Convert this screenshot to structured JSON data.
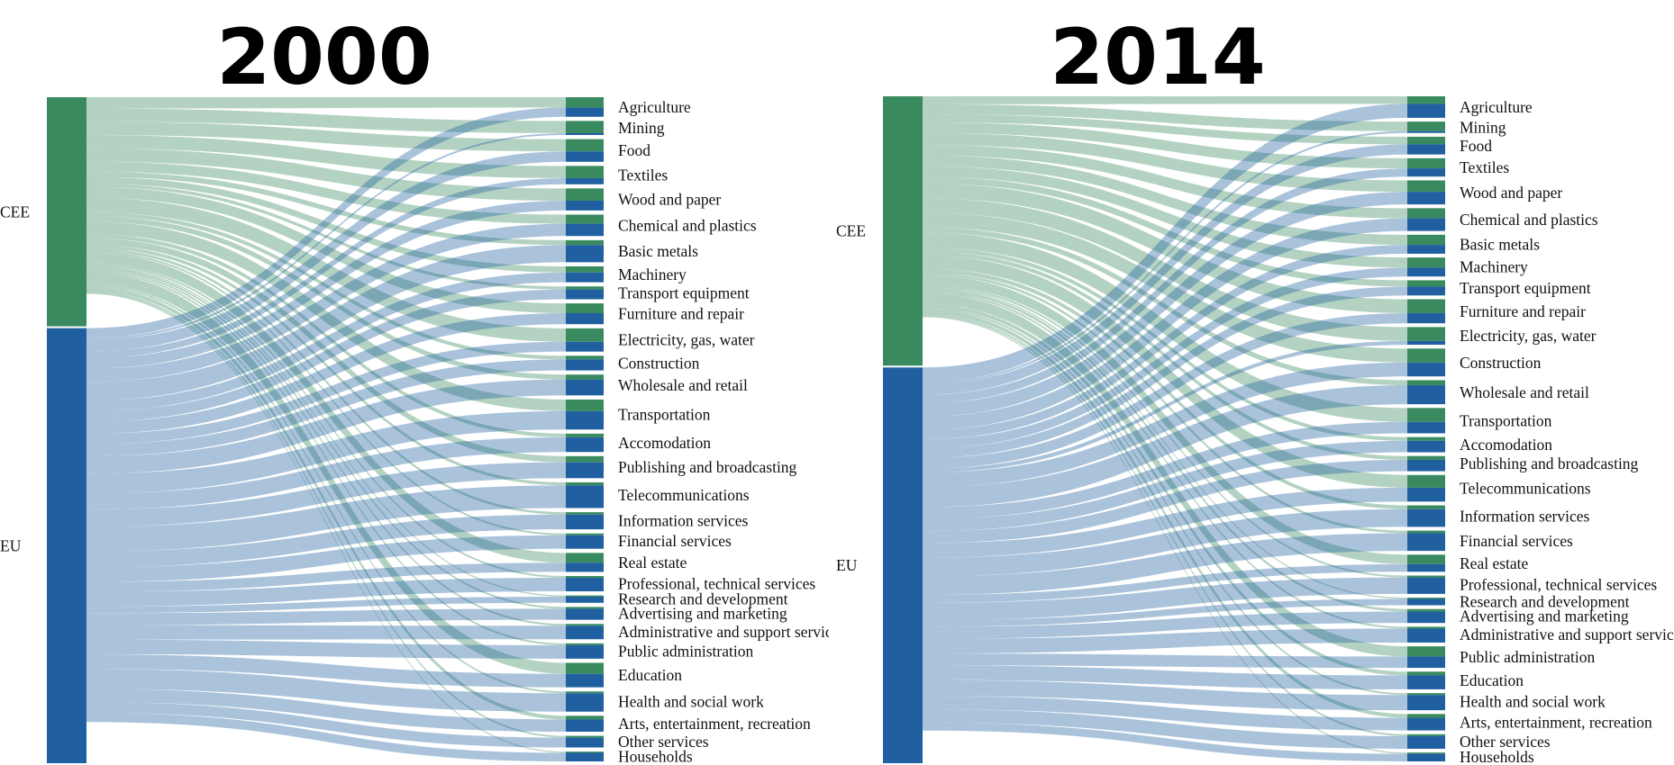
{
  "colors": {
    "CEE": "#3a8a5f",
    "EU": "#2060a0",
    "CEE_link": "#3a8a5f",
    "EU_link": "#2060a0"
  },
  "chart_data": [
    {
      "type": "sankey",
      "title": "2000",
      "sources": [
        "CEE",
        "EU"
      ],
      "source_totals": [
        34.5,
        65.5
      ],
      "units": "approximate share of node height (%)",
      "targets": [
        {
          "label": "Agriculture",
          "CEE": 1.7,
          "EU": 1.5
        },
        {
          "label": "Mining",
          "CEE": 2.0,
          "EU": 0.3
        },
        {
          "label": "Food",
          "CEE": 2.0,
          "EU": 1.7
        },
        {
          "label": "Textiles",
          "CEE": 2.0,
          "EU": 1.0
        },
        {
          "label": "Wood and paper",
          "CEE": 2.0,
          "EU": 1.6
        },
        {
          "label": "Chemical and plastics",
          "CEE": 1.5,
          "EU": 2.0
        },
        {
          "label": "Basic metals",
          "CEE": 0.8,
          "EU": 2.8
        },
        {
          "label": "Machinery",
          "CEE": 1.0,
          "EU": 1.6
        },
        {
          "label": "Transport equipment",
          "CEE": 0.5,
          "EU": 1.6
        },
        {
          "label": "Furniture and repair",
          "CEE": 1.6,
          "EU": 1.8
        },
        {
          "label": "Electricity, gas, water",
          "CEE": 2.2,
          "EU": 1.6
        },
        {
          "label": "Construction",
          "CEE": 0.6,
          "EU": 1.8
        },
        {
          "label": "Wholesale and retail",
          "CEE": 0.8,
          "EU": 2.6
        },
        {
          "label": "Transportation",
          "CEE": 1.9,
          "EU": 3.0
        },
        {
          "label": "Accomodation",
          "CEE": 0.6,
          "EU": 2.4
        },
        {
          "label": "Publishing and broadcasting",
          "CEE": 1.0,
          "EU": 2.6
        },
        {
          "label": "Telecommunications",
          "CEE": 0.5,
          "EU": 3.7
        },
        {
          "label": "Information services",
          "CEE": 0.4,
          "EU": 2.4
        },
        {
          "label": "Financial services",
          "CEE": 0.3,
          "EU": 2.2
        },
        {
          "label": "Real estate",
          "CEE": 1.6,
          "EU": 1.5
        },
        {
          "label": "Professional, technical services",
          "CEE": 0.3,
          "EU": 2.2
        },
        {
          "label": "Research and development",
          "CEE": 0.2,
          "EU": 1.0
        },
        {
          "label": "Advertising and marketing",
          "CEE": 0.3,
          "EU": 1.8
        },
        {
          "label": "Administrative and support services",
          "CEE": 0.3,
          "EU": 2.2
        },
        {
          "label": "Public administration",
          "CEE": 0.3,
          "EU": 2.2
        },
        {
          "label": "Education",
          "CEE": 1.8,
          "EU": 2.2
        },
        {
          "label": "Health and social work",
          "CEE": 0.3,
          "EU": 3.0
        },
        {
          "label": "Arts, entertainment, recreation",
          "CEE": 0.6,
          "EU": 2.0
        },
        {
          "label": "Other services",
          "CEE": 0.3,
          "EU": 1.6
        },
        {
          "label": "Households",
          "CEE": 0.2,
          "EU": 1.4
        }
      ]
    },
    {
      "type": "sankey",
      "title": "2014",
      "sources": [
        "CEE",
        "EU"
      ],
      "source_totals": [
        40.5,
        59.5
      ],
      "units": "approximate share of node height (%)",
      "targets": [
        {
          "label": "Agriculture",
          "CEE": 1.2,
          "EU": 2.2
        },
        {
          "label": "Mining",
          "CEE": 1.5,
          "EU": 0.3
        },
        {
          "label": "Food",
          "CEE": 1.2,
          "EU": 1.6
        },
        {
          "label": "Textiles",
          "CEE": 1.6,
          "EU": 1.3
        },
        {
          "label": "Wood and paper",
          "CEE": 1.8,
          "EU": 2.0
        },
        {
          "label": "Chemical and plastics",
          "CEE": 1.6,
          "EU": 2.0
        },
        {
          "label": "Basic metals",
          "CEE": 1.6,
          "EU": 1.4
        },
        {
          "label": "Machinery",
          "CEE": 1.6,
          "EU": 1.4
        },
        {
          "label": "Transport equipment",
          "CEE": 1.0,
          "EU": 1.4
        },
        {
          "label": "Furniture and repair",
          "CEE": 2.2,
          "EU": 1.6
        },
        {
          "label": "Electricity, gas, water",
          "CEE": 2.2,
          "EU": 0.6
        },
        {
          "label": "Construction",
          "CEE": 2.2,
          "EU": 2.2
        },
        {
          "label": "Wholesale and retail",
          "CEE": 0.8,
          "EU": 3.0
        },
        {
          "label": "Transportation",
          "CEE": 2.2,
          "EU": 1.8
        },
        {
          "label": "Accomodation",
          "CEE": 0.6,
          "EU": 1.8
        },
        {
          "label": "Publishing and broadcasting",
          "CEE": 0.6,
          "EU": 1.8
        },
        {
          "label": "Telecommunications",
          "CEE": 2.0,
          "EU": 2.2
        },
        {
          "label": "Information services",
          "CEE": 0.6,
          "EU": 2.8
        },
        {
          "label": "Financial services",
          "CEE": 0.4,
          "EU": 2.8
        },
        {
          "label": "Real estate",
          "CEE": 1.5,
          "EU": 1.2
        },
        {
          "label": "Professional, technical services",
          "CEE": 0.3,
          "EU": 2.6
        },
        {
          "label": "Research and development",
          "CEE": 0.2,
          "EU": 1.0
        },
        {
          "label": "Advertising and marketing",
          "CEE": 0.4,
          "EU": 1.8
        },
        {
          "label": "Administrative and support services",
          "CEE": 0.3,
          "EU": 2.2
        },
        {
          "label": "Public administration",
          "CEE": 1.6,
          "EU": 1.8
        },
        {
          "label": "Education",
          "CEE": 0.6,
          "EU": 2.2
        },
        {
          "label": "Health and social work",
          "CEE": 0.3,
          "EU": 2.4
        },
        {
          "label": "Arts, entertainment, recreation",
          "CEE": 0.6,
          "EU": 2.0
        },
        {
          "label": "Other services",
          "CEE": 0.3,
          "EU": 2.0
        },
        {
          "label": "Households",
          "CEE": 0.2,
          "EU": 1.2
        }
      ]
    }
  ]
}
